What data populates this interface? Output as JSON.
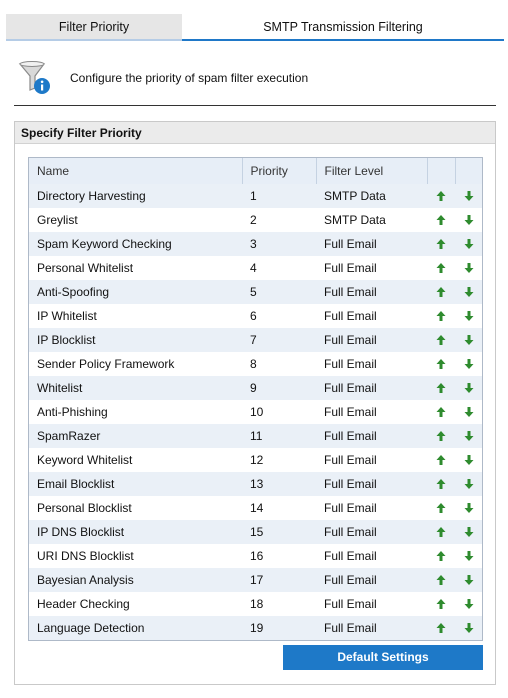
{
  "tabs": [
    {
      "label": "Filter Priority"
    },
    {
      "label": "SMTP Transmission Filtering"
    }
  ],
  "header": {
    "text": "Configure the priority of spam filter execution",
    "icon": "funnel-info-icon"
  },
  "group": {
    "title": "Specify Filter Priority"
  },
  "table": {
    "columns": [
      "Name",
      "Priority",
      "Filter Level"
    ],
    "rows": [
      {
        "name": "Directory Harvesting",
        "priority": "1",
        "level": "SMTP Data"
      },
      {
        "name": "Greylist",
        "priority": "2",
        "level": "SMTP Data"
      },
      {
        "name": "Spam Keyword Checking",
        "priority": "3",
        "level": "Full Email"
      },
      {
        "name": "Personal Whitelist",
        "priority": "4",
        "level": "Full Email"
      },
      {
        "name": "Anti-Spoofing",
        "priority": "5",
        "level": "Full Email"
      },
      {
        "name": "IP Whitelist",
        "priority": "6",
        "level": "Full Email"
      },
      {
        "name": "IP Blocklist",
        "priority": "7",
        "level": "Full Email"
      },
      {
        "name": "Sender Policy Framework",
        "priority": "8",
        "level": "Full Email"
      },
      {
        "name": "Whitelist",
        "priority": "9",
        "level": "Full Email"
      },
      {
        "name": "Anti-Phishing",
        "priority": "10",
        "level": "Full Email"
      },
      {
        "name": "SpamRazer",
        "priority": "11",
        "level": "Full Email"
      },
      {
        "name": "Keyword Whitelist",
        "priority": "12",
        "level": "Full Email"
      },
      {
        "name": "Email Blocklist",
        "priority": "13",
        "level": "Full Email"
      },
      {
        "name": "Personal Blocklist",
        "priority": "14",
        "level": "Full Email"
      },
      {
        "name": "IP DNS Blocklist",
        "priority": "15",
        "level": "Full Email"
      },
      {
        "name": "URI DNS Blocklist",
        "priority": "16",
        "level": "Full Email"
      },
      {
        "name": "Bayesian Analysis",
        "priority": "17",
        "level": "Full Email"
      },
      {
        "name": "Header Checking",
        "priority": "18",
        "level": "Full Email"
      },
      {
        "name": "Language Detection",
        "priority": "19",
        "level": "Full Email"
      }
    ],
    "up_icon": "arrow-up-icon",
    "down_icon": "arrow-down-icon",
    "arrow_color": "#2e8b2e"
  },
  "buttons": {
    "default_settings": "Default Settings"
  },
  "colors": {
    "accent": "#1e79c8",
    "row_alt": "#eaf0f7",
    "header_bg": "#e7eef7"
  }
}
